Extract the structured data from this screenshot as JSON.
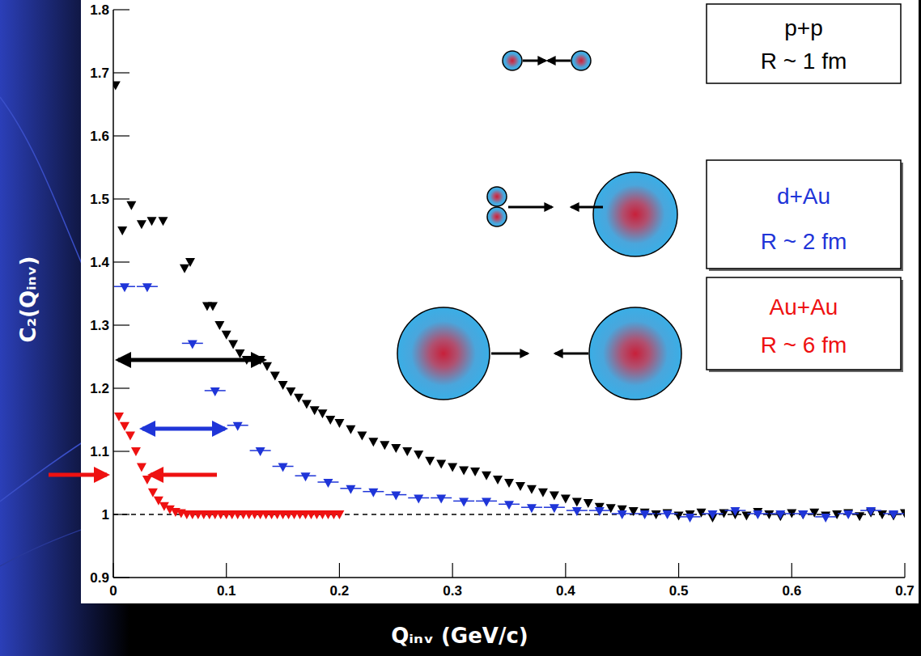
{
  "chart_data": {
    "type": "scatter",
    "x_label": "Qᵢₙᵥ (GeV/c)",
    "y_label": "C₂(Qᵢₙᵥ)",
    "xlim": [
      0,
      0.7
    ],
    "ylim": [
      0.9,
      1.8
    ],
    "xticks": [
      0,
      0.1,
      0.2,
      0.3,
      0.4,
      0.5,
      0.6,
      0.7
    ],
    "yticks": [
      0.9,
      1,
      1.1,
      1.2,
      1.3,
      1.4,
      1.5,
      1.6,
      1.7,
      1.8
    ],
    "grid": false,
    "legend": "top-right",
    "reference_line": 1,
    "annotations": [
      "R ~ 1 fm",
      "R ~ 2 fm",
      "R ~ 6 fm"
    ],
    "series": [
      {
        "name": "p+p",
        "color": "#000000",
        "marker": "triangle",
        "x": [
          0.002,
          0.008,
          0.016,
          0.025,
          0.034,
          0.044,
          0.063,
          0.068,
          0.083,
          0.088,
          0.094,
          0.1,
          0.106,
          0.112,
          0.118,
          0.124,
          0.13,
          0.136,
          0.143,
          0.15,
          0.157,
          0.164,
          0.171,
          0.178,
          0.185,
          0.192,
          0.2,
          0.21,
          0.22,
          0.23,
          0.24,
          0.25,
          0.26,
          0.27,
          0.28,
          0.29,
          0.3,
          0.31,
          0.32,
          0.33,
          0.34,
          0.35,
          0.36,
          0.37,
          0.38,
          0.39,
          0.4,
          0.41,
          0.42,
          0.43,
          0.44,
          0.45,
          0.46,
          0.47,
          0.48,
          0.49,
          0.5,
          0.51,
          0.52,
          0.53,
          0.54,
          0.55,
          0.56,
          0.57,
          0.58,
          0.59,
          0.6,
          0.61,
          0.62,
          0.63,
          0.64,
          0.65,
          0.66,
          0.67,
          0.68,
          0.69,
          0.7
        ],
        "values": [
          1.68,
          1.45,
          1.49,
          1.46,
          1.465,
          1.465,
          1.39,
          1.4,
          1.33,
          1.33,
          1.3,
          1.285,
          1.27,
          1.255,
          1.245,
          1.245,
          1.245,
          1.235,
          1.22,
          1.205,
          1.195,
          1.185,
          1.175,
          1.165,
          1.16,
          1.15,
          1.145,
          1.135,
          1.125,
          1.115,
          1.11,
          1.105,
          1.1,
          1.095,
          1.085,
          1.08,
          1.075,
          1.07,
          1.068,
          1.062,
          1.055,
          1.05,
          1.045,
          1.04,
          1.035,
          1.03,
          1.025,
          1.02,
          1.018,
          1.012,
          1.01,
          1.008,
          1.005,
          1.003,
          1.0,
          1.002,
          0.998,
          1.0,
          1.003,
          0.995,
          1.002,
          1.0,
          0.998,
          1.004,
          1.0,
          0.997,
          1.002,
          1.0,
          1.003,
          0.998,
          1.0,
          1.002,
          0.997,
          1.003,
          1.0,
          0.998,
          1.002
        ]
      },
      {
        "name": "d+Au",
        "color": "#1f35d8",
        "marker": "triangle-dash",
        "x": [
          0.01,
          0.03,
          0.07,
          0.09,
          0.11,
          0.13,
          0.15,
          0.17,
          0.19,
          0.21,
          0.23,
          0.25,
          0.27,
          0.29,
          0.31,
          0.33,
          0.35,
          0.37,
          0.39,
          0.41,
          0.43,
          0.45,
          0.47,
          0.49,
          0.51,
          0.53,
          0.55,
          0.57,
          0.59,
          0.61,
          0.63,
          0.65,
          0.67,
          0.69
        ],
        "values": [
          1.36,
          1.36,
          1.27,
          1.195,
          1.14,
          1.1,
          1.075,
          1.06,
          1.05,
          1.04,
          1.035,
          1.03,
          1.025,
          1.025,
          1.02,
          1.02,
          1.015,
          1.01,
          1.01,
          1.005,
          1.005,
          1.0,
          1.0,
          1.0,
          0.995,
          1.0,
          1.005,
          1.0,
          1.0,
          1.0,
          0.995,
          1.0,
          1.005,
          1.0
        ]
      },
      {
        "name": "Au+Au",
        "color": "#ee1111",
        "marker": "triangle",
        "x": [
          0.005,
          0.01,
          0.015,
          0.02,
          0.025,
          0.03,
          0.035,
          0.04,
          0.045,
          0.05,
          0.055,
          0.06,
          0.065,
          0.07,
          0.075,
          0.08,
          0.085,
          0.09,
          0.095,
          0.1,
          0.105,
          0.11,
          0.115,
          0.12,
          0.125,
          0.13,
          0.135,
          0.14,
          0.145,
          0.15,
          0.155,
          0.16,
          0.165,
          0.17,
          0.175,
          0.18,
          0.185,
          0.19,
          0.195,
          0.2
        ],
        "values": [
          1.155,
          1.14,
          1.125,
          1.1,
          1.075,
          1.055,
          1.035,
          1.022,
          1.013,
          1.008,
          1.004,
          1.002,
          1.0,
          1.0,
          1.0,
          1.0,
          1.0,
          1.0,
          1.0,
          1.0,
          1.0,
          1.0,
          1.0,
          1.0,
          1.0,
          1.0,
          1.0,
          1.0,
          1.0,
          1.0,
          1.0,
          1.0,
          1.0,
          1.0,
          1.0,
          1.0,
          1.0,
          1.0,
          1.0,
          1.0
        ]
      }
    ]
  }
}
